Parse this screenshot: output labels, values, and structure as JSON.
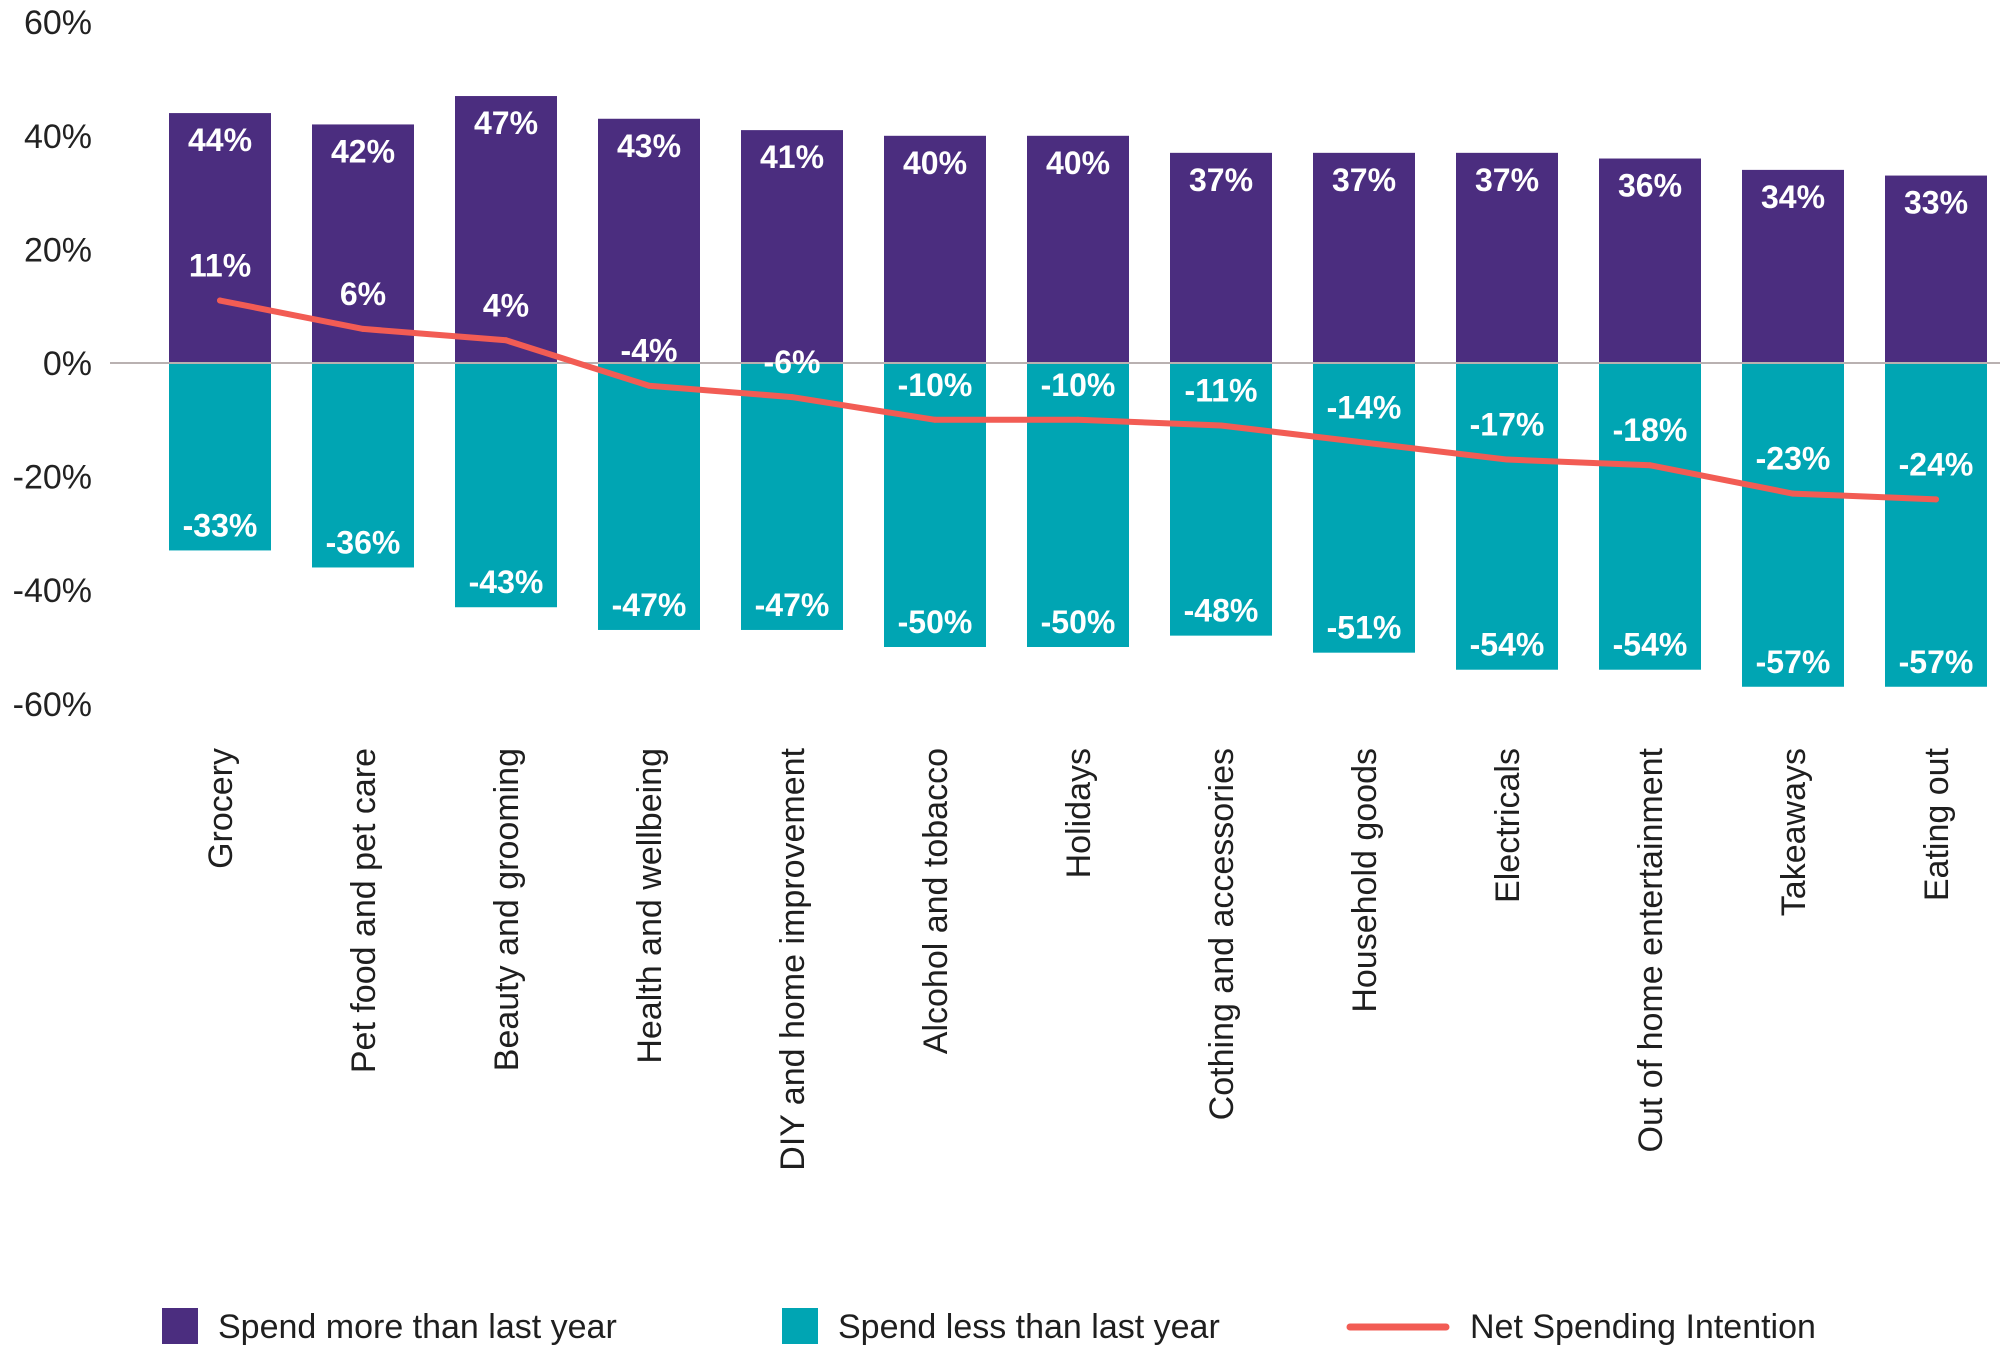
{
  "chart_data": {
    "type": "bar",
    "title": "",
    "xlabel": "",
    "ylabel": "",
    "ylim": [
      -60,
      60
    ],
    "yticks": [
      60,
      40,
      20,
      0,
      -20,
      -40,
      -60
    ],
    "ytick_labels": [
      "60%",
      "40%",
      "20%",
      "0%",
      "-20%",
      "-40%",
      "-60%"
    ],
    "categories": [
      "Grocery",
      "Pet food and pet care",
      "Beauty and grooming",
      "Health and wellbeing",
      "DIY and home improvement",
      "Alcohol and tobacco",
      "Holidays",
      "Cothing and accessories",
      "Household goods",
      "Electricals",
      "Out of home entertainment",
      "Takeaways",
      "Eating out"
    ],
    "series": [
      {
        "name": "Spend more than last year",
        "kind": "bar",
        "color": "#4b2d7f",
        "values": [
          44,
          42,
          47,
          43,
          41,
          40,
          40,
          37,
          37,
          37,
          36,
          34,
          33
        ],
        "labels": [
          "44%",
          "42%",
          "47%",
          "43%",
          "41%",
          "40%",
          "40%",
          "37%",
          "37%",
          "37%",
          "36%",
          "34%",
          "33%"
        ]
      },
      {
        "name": "Spend less than last year",
        "kind": "bar",
        "color": "#00a5b3",
        "values": [
          -33,
          -36,
          -43,
          -47,
          -47,
          -50,
          -50,
          -48,
          -51,
          -54,
          -54,
          -57,
          -57
        ],
        "labels": [
          "-33%",
          "-36%",
          "-43%",
          "-47%",
          "-47%",
          "-50%",
          "-50%",
          "-48%",
          "-51%",
          "-54%",
          "-54%",
          "-57%",
          "-57%"
        ]
      },
      {
        "name": "Net Spending Intention",
        "kind": "line",
        "color": "#f25c54",
        "values": [
          11,
          6,
          4,
          -4,
          -6,
          -10,
          -10,
          -11,
          -14,
          -17,
          -18,
          -23,
          -24
        ],
        "labels": [
          "11%",
          "6%",
          "4%",
          "-4%",
          "-6%",
          "-10%",
          "-10%",
          "-11%",
          "-14%",
          "-17%",
          "-18%",
          "-23%",
          "-24%"
        ]
      }
    ],
    "grid": false,
    "legend_position": "bottom"
  }
}
